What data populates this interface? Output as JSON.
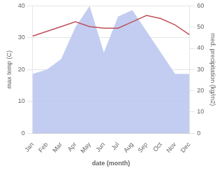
{
  "chart_data": {
    "type": "line",
    "xlabel": "date (month)",
    "ylabel": "max temp (C)",
    "y2label": "med. precipitation (kg/m2)",
    "categories": [
      "Jan",
      "Feb",
      "Mar",
      "Apr",
      "May",
      "Jun",
      "Jul",
      "Aug",
      "Sep",
      "Oct",
      "Nov",
      "Dec"
    ],
    "series": [
      {
        "type": "area",
        "color": "#b8c4ee",
        "axis": "y2",
        "values": [
          28,
          30,
          35,
          50,
          60,
          38,
          55,
          58,
          48,
          38,
          28,
          28
        ]
      },
      {
        "type": "line",
        "color": "#c0505a",
        "values": [
          30.5,
          32,
          33.5,
          35,
          33.5,
          33,
          33,
          35,
          37,
          36,
          34,
          31
        ]
      }
    ],
    "ylim": [
      0,
      40
    ],
    "yticks": [
      0,
      10,
      20,
      30,
      40
    ],
    "y2lim": [
      0,
      60
    ],
    "y2ticks": [
      0,
      10,
      20,
      30,
      40,
      50,
      60
    ],
    "grid": true
  }
}
